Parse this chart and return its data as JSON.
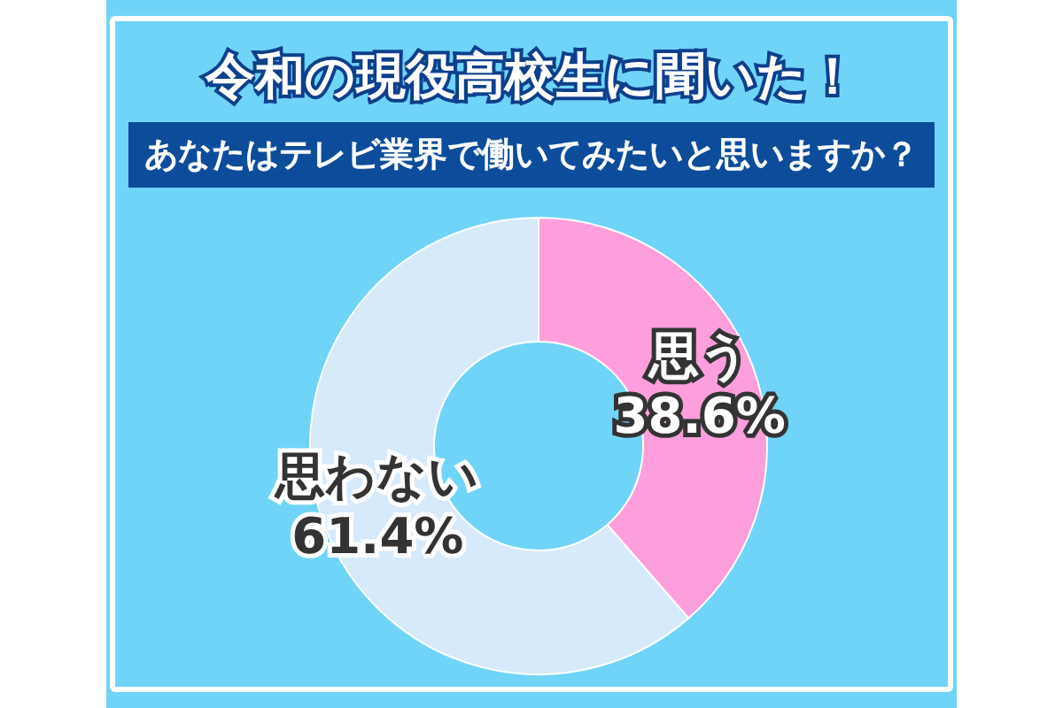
{
  "chart_data": {
    "type": "donut",
    "title": "令和の現役高校生に聞いた！",
    "subtitle": "あなたはテレビ業界で働いてみたいと思いますか？",
    "categories": [
      "思う",
      "思わない"
    ],
    "values": [
      38.6,
      61.4
    ],
    "colors": [
      "#fe9fdd",
      "#d6eafc"
    ],
    "value_labels": [
      "38.6%",
      "61.4%"
    ]
  }
}
